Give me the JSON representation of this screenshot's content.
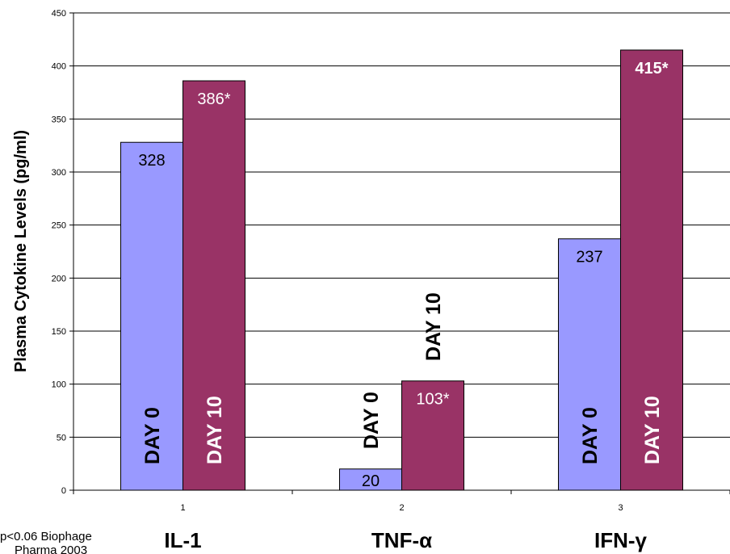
{
  "chart_data": {
    "type": "bar",
    "ylabel": "Plasma Cytokine Levels (pg/ml)",
    "ylim": [
      0,
      450
    ],
    "yticks": [
      0,
      50,
      100,
      150,
      200,
      250,
      300,
      350,
      400,
      450
    ],
    "grid": true,
    "categories": [
      "1",
      "2",
      "3"
    ],
    "category_names": [
      "IL-1",
      "TNF-α",
      "IFN-γ"
    ],
    "series": [
      {
        "values": [
          328,
          20,
          237
        ],
        "labels": [
          "328",
          "20",
          "237"
        ],
        "tags": [
          "DAY 0",
          "DAY 0",
          "DAY 0"
        ],
        "color": "#9999ff"
      },
      {
        "values": [
          386,
          103,
          415
        ],
        "labels": [
          "386*",
          "103*",
          "415*"
        ],
        "tags": [
          "DAY 10",
          "DAY 10",
          "DAY 10"
        ],
        "color": "#993366"
      }
    ]
  },
  "footnote": {
    "line1": "p<0.06 Biophage",
    "line2": "Pharma 2003"
  }
}
